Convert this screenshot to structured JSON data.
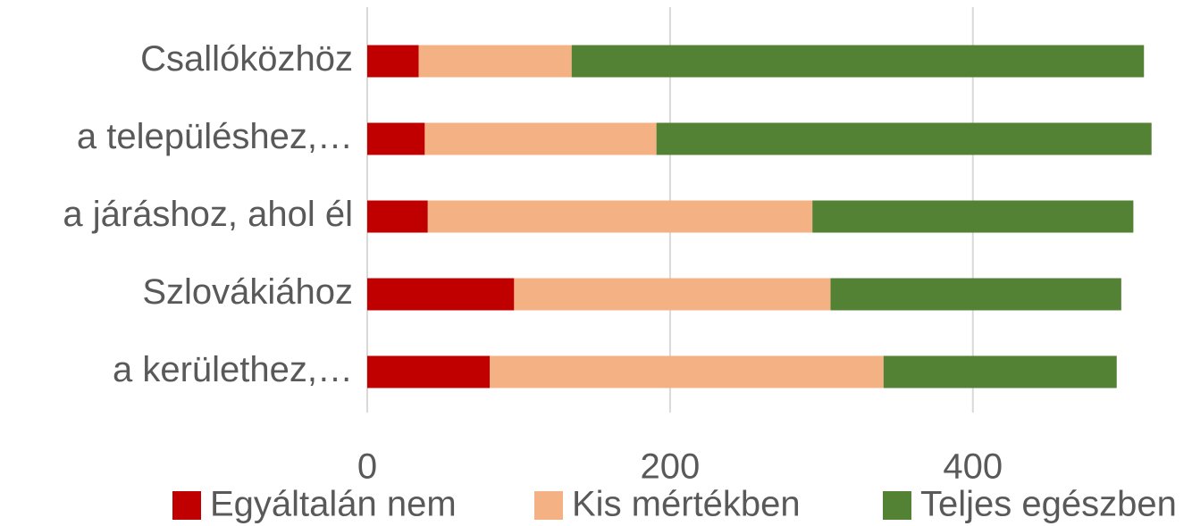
{
  "chart_data": {
    "type": "stacked_barh",
    "categories": [
      "Csallóközhöz",
      "a településhez,…",
      "a járáshoz, ahol él",
      "Szlovákiához",
      "a kerülethez,…"
    ],
    "series": [
      {
        "name": "Egyáltalán nem",
        "color": "#c00000",
        "values": [
          34,
          38,
          40,
          97,
          81
        ]
      },
      {
        "name": "Kis mértékben",
        "color": "#f4b183",
        "values": [
          101,
          153,
          254,
          209,
          260
        ]
      },
      {
        "name": "Teljes egészben",
        "color": "#548235",
        "values": [
          378,
          327,
          212,
          192,
          154
        ]
      }
    ],
    "xlim": [
      0,
      540
    ],
    "xticks": [
      0,
      200,
      400
    ],
    "grid": true,
    "legend": "bottom"
  }
}
